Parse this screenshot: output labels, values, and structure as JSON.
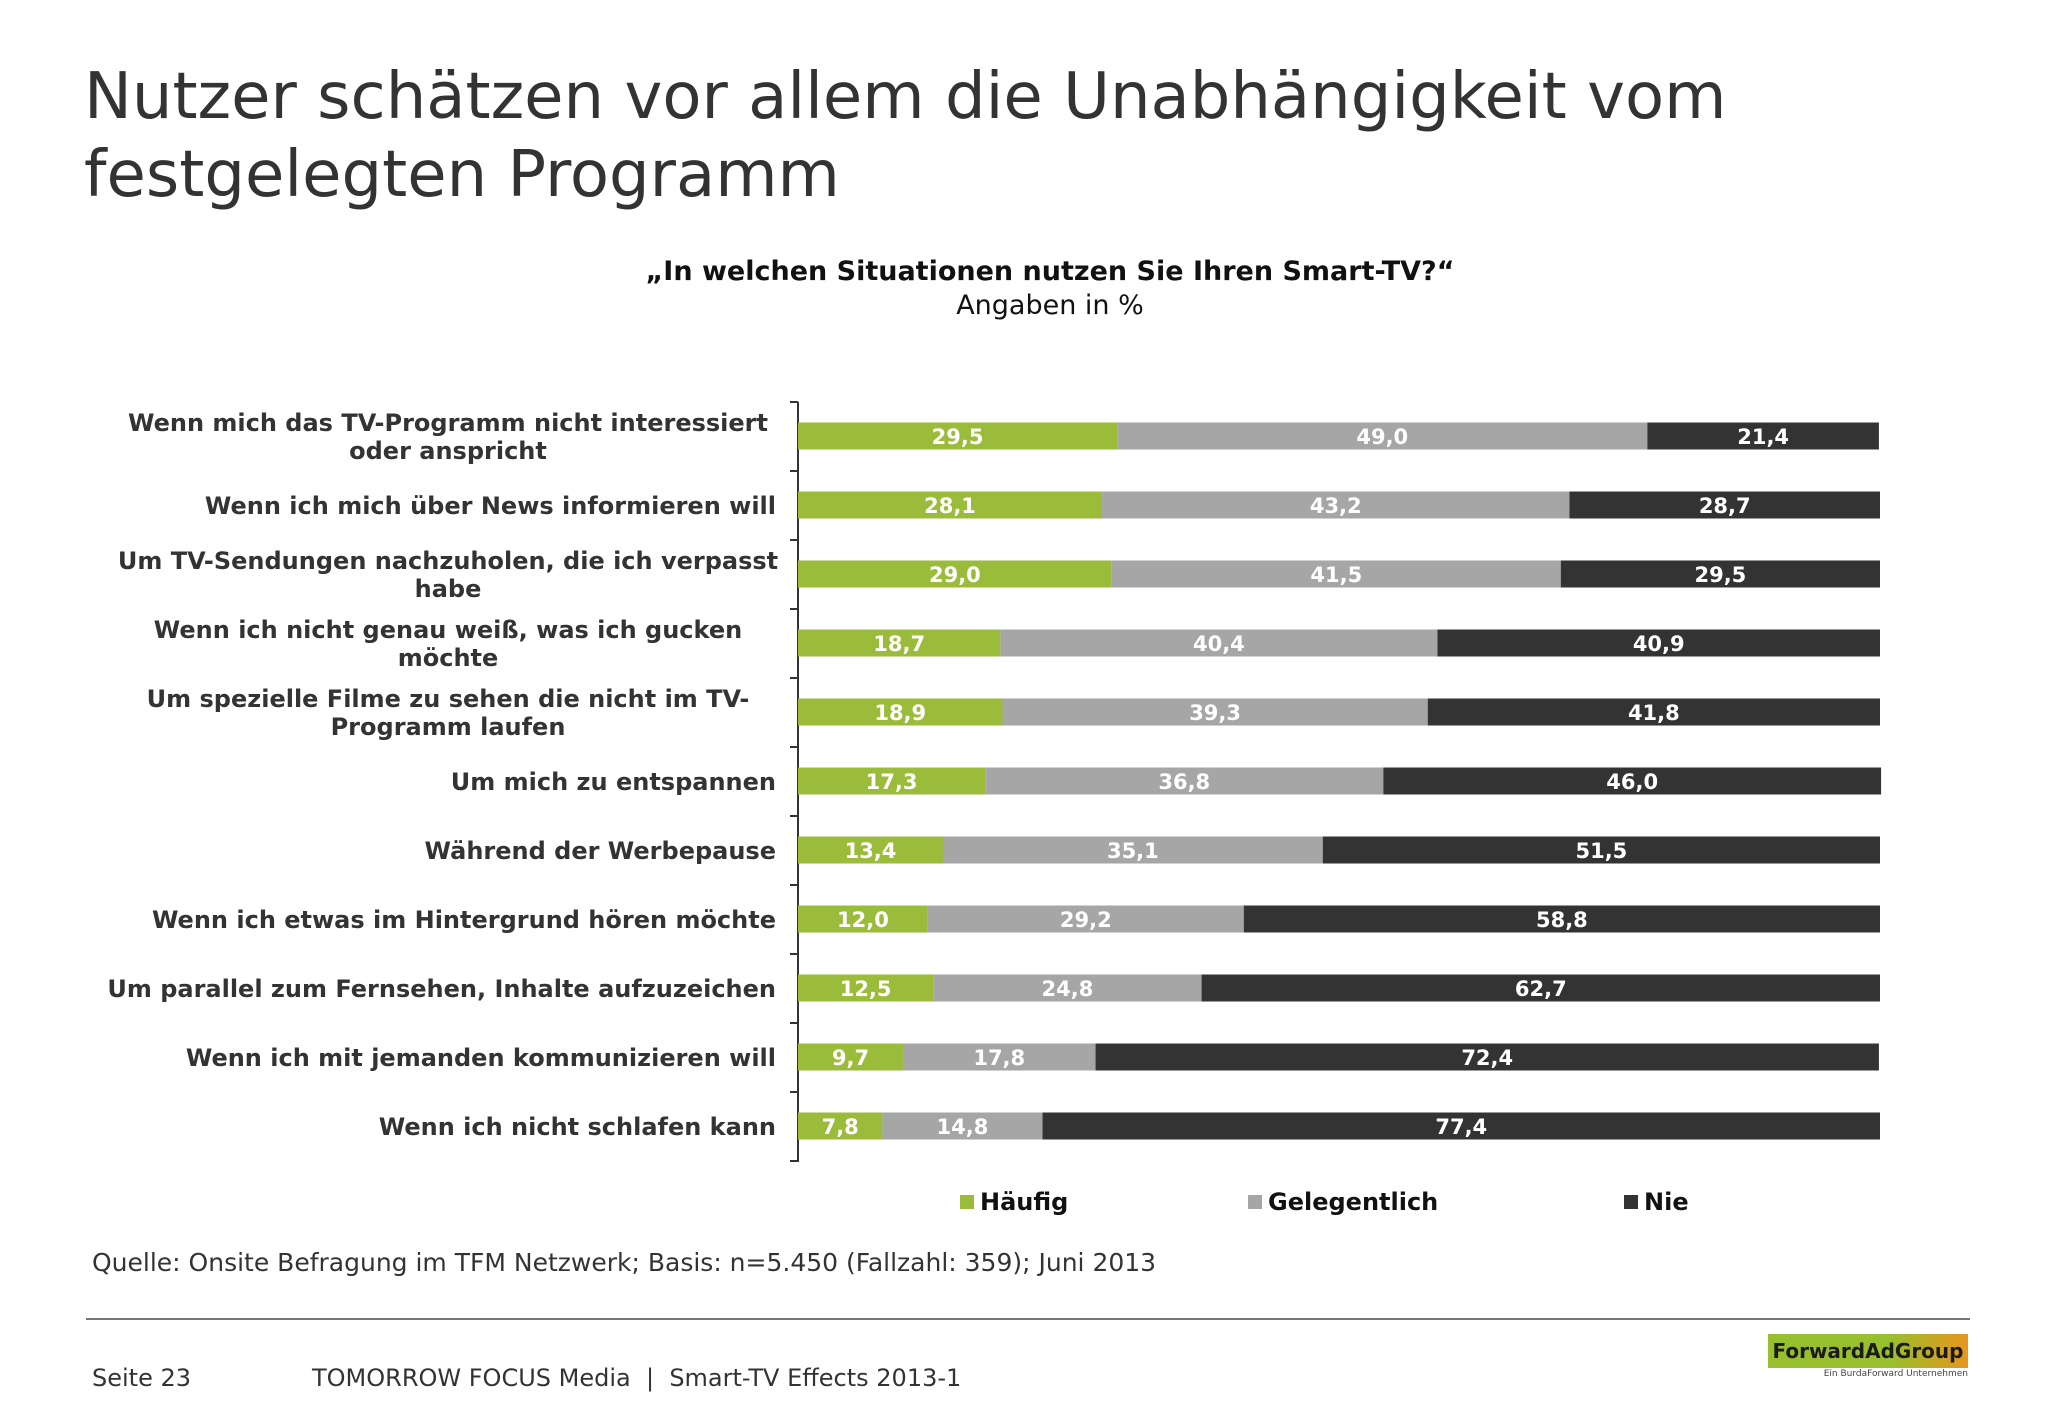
{
  "page": {
    "title": "Nutzer schätzen vor allem die Unabhängigkeit vom festgelegten Programm",
    "source": "Quelle: Onsite Befragung im TFM Netzwerk; Basis: n=5.450 (Fallzahl: 359); Juni 2013",
    "page_number": "Seite 23",
    "footer": "TOMORROW FOCUS Media  |  Smart-TV Effects 2013-1",
    "logo_text": "ForwardAdGroup",
    "logo_subtext": "Ein BurdaForward Unternehmen"
  },
  "chart_data": {
    "type": "bar",
    "orientation": "horizontal",
    "stacked": true,
    "title": "„In welchen Situationen nutzen Sie Ihren Smart-TV?“",
    "subtitle": "Angaben in %",
    "xlim": [
      0,
      100
    ],
    "legend_position": "bottom",
    "categories": [
      "Wenn mich das TV-Programm nicht interessiert oder anspricht",
      "Wenn ich mich über News informieren will",
      "Um TV-Sendungen nachzuholen, die ich verpasst habe",
      "Wenn ich nicht genau weiß, was ich gucken möchte",
      "Um spezielle Filme zu sehen die nicht im TV-Programm laufen",
      "Um mich zu entspannen",
      "Während der Werbepause",
      "Wenn ich etwas im Hintergrund hören möchte",
      "Um parallel zum Fernsehen, Inhalte aufzuzeichen",
      "Wenn ich mit jemanden kommunizieren will",
      "Wenn ich nicht schlafen kann"
    ],
    "category_lines": [
      [
        "Wenn mich das TV-Programm nicht interessiert",
        "oder anspricht"
      ],
      [
        "Wenn ich mich über News informieren will"
      ],
      [
        "Um TV-Sendungen nachzuholen, die ich verpasst",
        "habe"
      ],
      [
        "Wenn ich nicht genau weiß, was ich gucken",
        "möchte"
      ],
      [
        "Um spezielle Filme zu sehen die nicht im TV-",
        "Programm laufen"
      ],
      [
        "Um mich zu entspannen"
      ],
      [
        "Während der Werbepause"
      ],
      [
        "Wenn ich etwas im Hintergrund hören möchte"
      ],
      [
        "Um parallel zum Fernsehen, Inhalte aufzuzeichen"
      ],
      [
        "Wenn ich mit jemanden kommunizieren will"
      ],
      [
        "Wenn ich nicht schlafen kann"
      ]
    ],
    "series": [
      {
        "name": "Häufig",
        "color": "#9bbb3b",
        "values": [
          29.5,
          28.1,
          29.0,
          18.7,
          18.9,
          17.3,
          13.4,
          12.0,
          12.5,
          9.7,
          7.8
        ],
        "labels": [
          "29,5",
          "28,1",
          "29,0",
          "18,7",
          "18,9",
          "17,3",
          "13,4",
          "12,0",
          "12,5",
          "9,7",
          "7,8"
        ]
      },
      {
        "name": "Gelegentlich",
        "color": "#a6a6a6",
        "values": [
          49.0,
          43.2,
          41.5,
          40.4,
          39.3,
          36.8,
          35.1,
          29.2,
          24.8,
          17.8,
          14.8
        ],
        "labels": [
          "49,0",
          "43,2",
          "41,5",
          "40,4",
          "39,3",
          "36,8",
          "35,1",
          "29,2",
          "24,8",
          "17,8",
          "14,8"
        ]
      },
      {
        "name": "Nie",
        "color": "#333333",
        "values": [
          21.4,
          28.7,
          29.5,
          40.9,
          41.8,
          46.0,
          51.5,
          58.8,
          62.7,
          72.4,
          77.4
        ],
        "labels": [
          "21,4",
          "28,7",
          "29,5",
          "40,9",
          "41,8",
          "46,0",
          "51,5",
          "58,8",
          "62,7",
          "72,4",
          "77,4"
        ]
      }
    ]
  }
}
